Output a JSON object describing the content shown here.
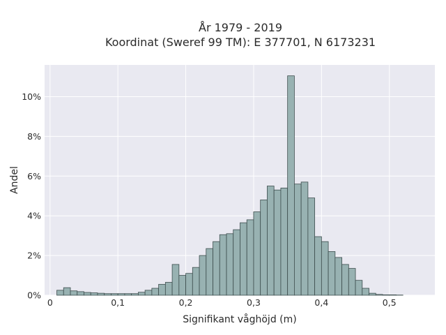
{
  "chart_data": {
    "type": "bar",
    "title_lines": [
      "År 1979 - 2019",
      "Koordinat (Sweref 99 TM): E 377701, N 6173231"
    ],
    "xlabel": "Signifikant våghöjd (m)",
    "ylabel": "Andel",
    "xlim": [
      -0.008,
      0.567
    ],
    "ylim": [
      0,
      11.6
    ],
    "x_ticks": [
      0,
      0.1,
      0.2,
      0.3,
      0.4,
      0.5
    ],
    "x_tick_labels": [
      "0",
      "0,1",
      "0,2",
      "0,3",
      "0,4",
      "0,5"
    ],
    "y_ticks": [
      0,
      2,
      4,
      6,
      8,
      10
    ],
    "y_tick_labels": [
      "0%",
      "2%",
      "4%",
      "6%",
      "8%",
      "10%"
    ],
    "grid": true,
    "bin_width": 0.01,
    "bin_starts": [
      0.01,
      0.02,
      0.03,
      0.04,
      0.05,
      0.06,
      0.07,
      0.08,
      0.09,
      0.1,
      0.11,
      0.12,
      0.13,
      0.14,
      0.15,
      0.16,
      0.17,
      0.18,
      0.19,
      0.2,
      0.21,
      0.22,
      0.23,
      0.24,
      0.25,
      0.26,
      0.27,
      0.28,
      0.29,
      0.3,
      0.31,
      0.32,
      0.33,
      0.34,
      0.35,
      0.36,
      0.37,
      0.38,
      0.39,
      0.4,
      0.41,
      0.42,
      0.43,
      0.44,
      0.45,
      0.46,
      0.47,
      0.48,
      0.49,
      0.5,
      0.51,
      0.52,
      0.53
    ],
    "values": [
      0.25,
      0.38,
      0.22,
      0.18,
      0.14,
      0.12,
      0.1,
      0.08,
      0.08,
      0.08,
      0.08,
      0.08,
      0.15,
      0.25,
      0.35,
      0.55,
      0.65,
      1.55,
      1.0,
      1.1,
      1.4,
      2.0,
      2.35,
      2.7,
      3.05,
      3.1,
      3.3,
      3.65,
      3.8,
      4.2,
      4.8,
      5.5,
      5.3,
      5.4,
      11.05,
      5.6,
      5.7,
      4.9,
      2.95,
      2.7,
      2.2,
      1.9,
      1.55,
      1.35,
      0.75,
      0.35,
      0.1,
      0.04,
      0.02,
      0.02,
      0.01,
      0.0,
      0.0
    ],
    "colors": {
      "bar_fill": "#98b2b2",
      "bar_stroke": "#3d4d4d",
      "plot_bg": "#e9e9f1",
      "grid": "#ffffff"
    }
  }
}
